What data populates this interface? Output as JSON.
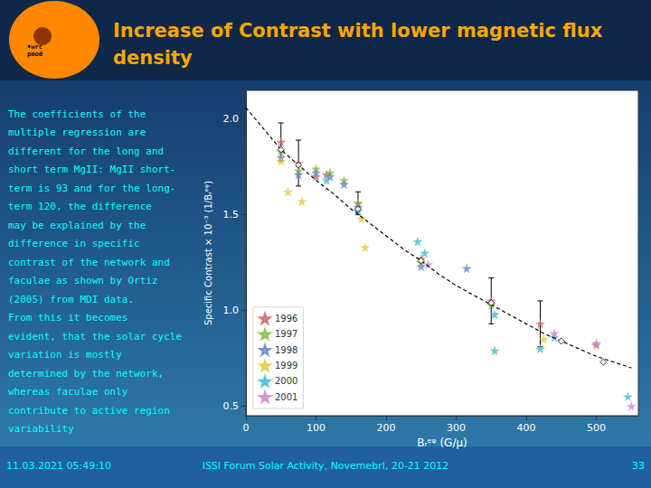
{
  "chart_data": {
    "type": "scatter",
    "title": "Increase of Contrast with lower magnetic flux\ndensity",
    "xlabel": "Bᵣᵉᵠ (G/μ)",
    "ylabel": "Specific Contrast × 10⁻³ (1/Bᵣᵉᵠ)",
    "annotations": [
      "The coefficients of the\nmultiple regression are\ndifferent for the long and\nshort term MgII: MgII short-\nterm is 93 and for the long-\nterm 120, the difference\nmay be explained by the\ndifference in specific\ncontrast of the network and\nfaculae as shown by Ortiz\n(2005) from MDI data.\nFrom this it becomes\nevident, that the solar cycle\nvariation is mostly\ndetermined by the network,\nwhereas faculae only\ncontribute to active region\nvariability",
      "11.03.2021 05:49:10",
      "ISSI Forum Solar Activity, Novemebrl, 20-21 2012",
      "33",
      "♦wrc\npmod"
    ],
    "xlim": [
      0,
      560
    ],
    "ylim": [
      0.45,
      2.15
    ],
    "xticks": [
      0,
      100,
      200,
      300,
      400,
      500
    ],
    "yticks": [
      0.5,
      {
        "value": 1.0,
        "label": "1.0"
      },
      1.5,
      {
        "value": 2.0,
        "label": "2.0"
      }
    ],
    "grid": false,
    "legend": "lower left",
    "series": [
      {
        "name": "1996",
        "type": "scatter",
        "marker": "star",
        "color": "#CC6666",
        "x": [
          50,
          75,
          100,
          115,
          160,
          250,
          350,
          420,
          500
        ],
        "values": [
          1.88,
          1.77,
          1.7,
          1.71,
          1.56,
          1.27,
          1.05,
          0.93,
          0.82
        ],
        "yerr": [
          0.1,
          0.12,
          0.0,
          0.0,
          0.06,
          0.0,
          0.12,
          0.12,
          0.0
        ]
      },
      {
        "name": "1997",
        "type": "scatter",
        "marker": "star",
        "color": "#88BB44",
        "x": [
          50,
          75,
          100,
          120,
          140,
          160,
          250,
          350
        ],
        "values": [
          1.83,
          1.73,
          1.74,
          1.72,
          1.68,
          1.56,
          1.25,
          1.03
        ],
        "yerr": [
          0.0,
          0.0,
          0.0,
          0.0,
          0.0,
          0.0,
          0.0,
          0.0
        ]
      },
      {
        "name": "1998",
        "type": "scatter",
        "marker": "star",
        "color": "#6688CC",
        "x": [
          50,
          75,
          100,
          120,
          140,
          160,
          250,
          315
        ],
        "values": [
          1.8,
          1.71,
          1.72,
          1.7,
          1.66,
          1.54,
          1.23,
          1.22
        ],
        "yerr": [
          0.0,
          0.0,
          0.0,
          0.0,
          0.0,
          0.0,
          0.0,
          0.0
        ]
      },
      {
        "name": "1999",
        "type": "scatter",
        "marker": "star",
        "color": "#DDCC44",
        "x": [
          50,
          60,
          80,
          165,
          170,
          425
        ],
        "values": [
          1.78,
          1.62,
          1.57,
          1.48,
          1.33,
          0.85
        ],
        "yerr": [
          0.0,
          0.0,
          0.0,
          0.0,
          0.0,
          0.0
        ]
      },
      {
        "name": "2000",
        "type": "scatter",
        "marker": "star",
        "color": "#44BBCC",
        "x": [
          115,
          160,
          245,
          255,
          355,
          355,
          420,
          440,
          545
        ],
        "values": [
          1.68,
          1.52,
          1.36,
          1.3,
          0.98,
          0.79,
          0.8,
          0.86,
          0.55
        ],
        "yerr": [
          0.0,
          0.0,
          0.0,
          0.0,
          0.0,
          0.0,
          0.0,
          0.0,
          0.0
        ]
      },
      {
        "name": "2001",
        "type": "scatter",
        "marker": "star",
        "color": "#CC88CC",
        "x": [
          260,
          440,
          500,
          550
        ],
        "values": [
          1.24,
          0.88,
          0.83,
          0.5
        ],
        "yerr": [
          0.0,
          0.0,
          0.0,
          0.0
        ]
      },
      {
        "type": "line",
        "line_style": "dashed",
        "color": "#000000",
        "x": [
          0,
          25,
          50,
          75,
          100,
          125,
          150,
          175,
          200,
          225,
          250,
          275,
          300,
          325,
          350,
          375,
          400,
          425,
          450,
          475,
          500,
          525,
          550
        ],
        "values": [
          2.06,
          1.95,
          1.84,
          1.76,
          1.68,
          1.61,
          1.53,
          1.46,
          1.39,
          1.32,
          1.26,
          1.19,
          1.13,
          1.08,
          1.03,
          0.98,
          0.93,
          0.88,
          0.84,
          0.8,
          0.76,
          0.73,
          0.7
        ]
      },
      {
        "type": "scatter",
        "marker": "diamond",
        "color": "#000000",
        "x": [
          50,
          75,
          160,
          250,
          350,
          450,
          510
        ],
        "values": [
          1.84,
          1.76,
          1.53,
          1.26,
          1.04,
          0.84,
          0.73
        ]
      }
    ]
  }
}
